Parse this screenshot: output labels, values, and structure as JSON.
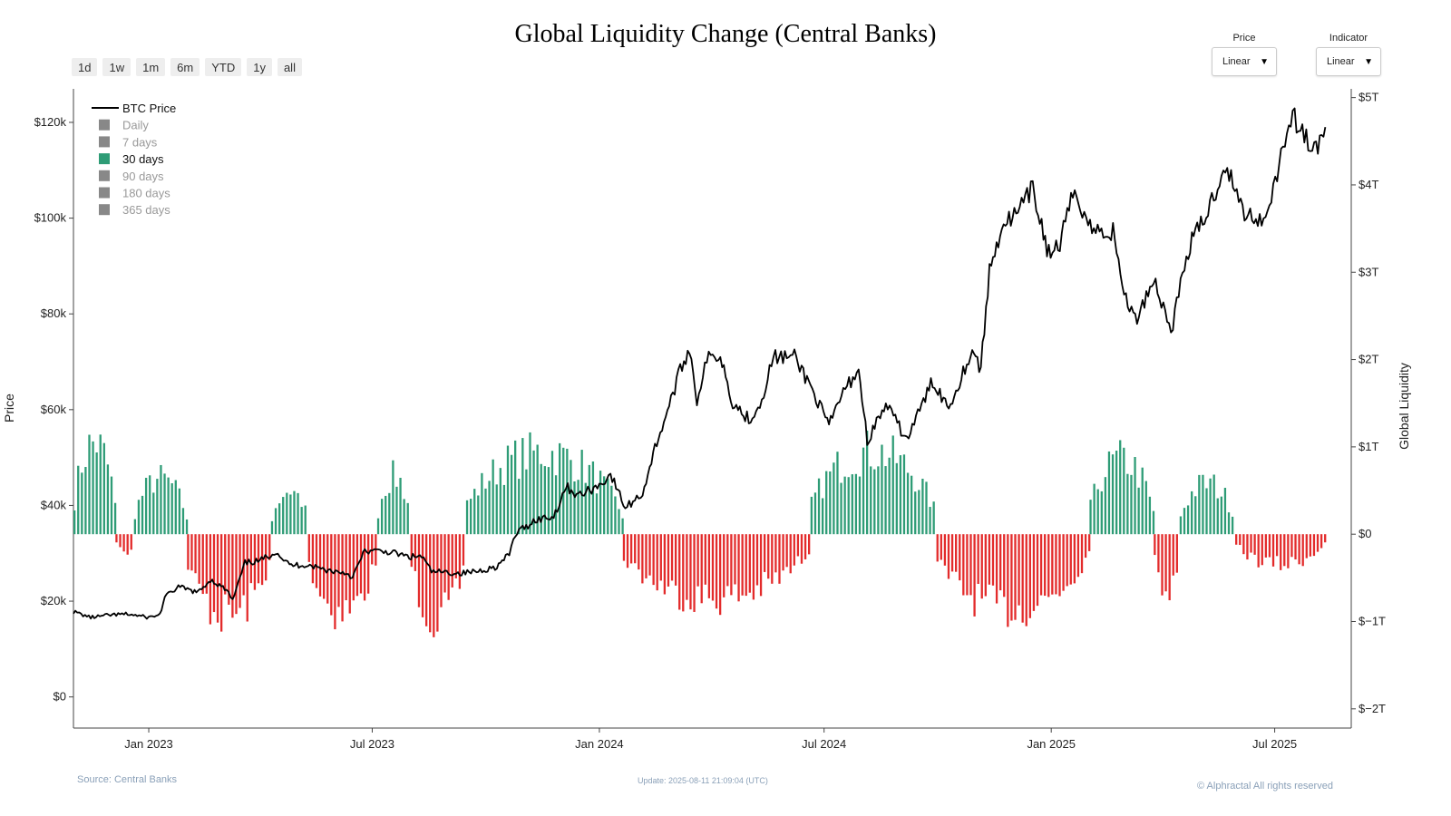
{
  "title": "Global Liquidity Change (Central Banks)",
  "range_buttons": [
    "1d",
    "1w",
    "1m",
    "6m",
    "YTD",
    "1y",
    "all"
  ],
  "dropdowns": {
    "price": {
      "label": "Price",
      "value": "Linear"
    },
    "indicator": {
      "label": "Indicator",
      "value": "Linear"
    }
  },
  "footer": {
    "source": "Source: Central Banks",
    "update": "Update: 2025-08-11 21:09:04 (UTC)",
    "copyright": "© Alphractal All rights reserved"
  },
  "colors": {
    "positive": "#2e9c76",
    "negative": "#e32b2b",
    "price_line": "#000000",
    "legend_inactive": "#888888",
    "legend_active": "#2e9c76"
  },
  "chart_data": {
    "type": "bar",
    "x_range": [
      "2022-11-01",
      "2025-09-01"
    ],
    "x_ticks": [
      {
        "date": "2023-01-01",
        "label": "Jan 2023"
      },
      {
        "date": "2023-07-01",
        "label": "Jul 2023"
      },
      {
        "date": "2024-01-01",
        "label": "Jan 2024"
      },
      {
        "date": "2024-07-01",
        "label": "Jul 2024"
      },
      {
        "date": "2025-01-01",
        "label": "Jan 2025"
      },
      {
        "date": "2025-07-01",
        "label": "Jul 2025"
      }
    ],
    "y_left": {
      "label": "Price",
      "range": [
        -6500,
        127000
      ],
      "ticks": [
        {
          "value": 0,
          "label": "$0"
        },
        {
          "value": 20000,
          "label": "$20k"
        },
        {
          "value": 40000,
          "label": "$40k"
        },
        {
          "value": 60000,
          "label": "$60k"
        },
        {
          "value": 80000,
          "label": "$80k"
        },
        {
          "value": 100000,
          "label": "$100k"
        },
        {
          "value": 120000,
          "label": "$120k"
        }
      ]
    },
    "y_right": {
      "label": "Global Liquidity",
      "range": [
        -2.22,
        5.1
      ],
      "ticks": [
        {
          "value": 5,
          "label": "$5T"
        },
        {
          "value": 4,
          "label": "$4T"
        },
        {
          "value": 3,
          "label": "$3T"
        },
        {
          "value": 2,
          "label": "$2T"
        },
        {
          "value": 1,
          "label": "$1T"
        },
        {
          "value": 0,
          "label": "$0"
        },
        {
          "value": -1,
          "label": "$−1T"
        },
        {
          "value": -2,
          "label": "$−2T"
        }
      ]
    },
    "legend": {
      "position": "top-left",
      "items": [
        {
          "name": "BTC Price",
          "kind": "line",
          "active": true
        },
        {
          "name": "Daily",
          "kind": "box",
          "active": false
        },
        {
          "name": "7 days",
          "kind": "box",
          "active": false
        },
        {
          "name": "30 days",
          "kind": "box",
          "active": true
        },
        {
          "name": "90 days",
          "kind": "box",
          "active": false
        },
        {
          "name": "180 days",
          "kind": "box",
          "active": false
        },
        {
          "name": "365 days",
          "kind": "box",
          "active": false
        }
      ]
    },
    "series": [
      {
        "name": "BTC Price",
        "type": "line",
        "axis": "left",
        "points": [
          [
            "2022-11-01",
            17800
          ],
          [
            "2022-11-15",
            16600
          ],
          [
            "2022-12-01",
            17100
          ],
          [
            "2022-12-15",
            17300
          ],
          [
            "2023-01-01",
            16600
          ],
          [
            "2023-01-10",
            17200
          ],
          [
            "2023-01-14",
            20800
          ],
          [
            "2023-01-25",
            23000
          ],
          [
            "2023-02-10",
            21800
          ],
          [
            "2023-02-20",
            24500
          ],
          [
            "2023-03-05",
            22300
          ],
          [
            "2023-03-10",
            20200
          ],
          [
            "2023-03-20",
            28000
          ],
          [
            "2023-04-01",
            28400
          ],
          [
            "2023-04-14",
            30400
          ],
          [
            "2023-04-25",
            27500
          ],
          [
            "2023-05-10",
            27600
          ],
          [
            "2023-05-25",
            26500
          ],
          [
            "2023-06-10",
            25900
          ],
          [
            "2023-06-15",
            25000
          ],
          [
            "2023-06-25",
            30500
          ],
          [
            "2023-07-15",
            30300
          ],
          [
            "2023-07-31",
            29200
          ],
          [
            "2023-08-10",
            29400
          ],
          [
            "2023-08-18",
            26200
          ],
          [
            "2023-09-10",
            25800
          ],
          [
            "2023-09-25",
            26300
          ],
          [
            "2023-10-10",
            27200
          ],
          [
            "2023-10-20",
            29800
          ],
          [
            "2023-10-25",
            34000
          ],
          [
            "2023-11-10",
            37000
          ],
          [
            "2023-11-25",
            37700
          ],
          [
            "2023-12-05",
            44000
          ],
          [
            "2023-12-15",
            42000
          ],
          [
            "2024-01-01",
            44200
          ],
          [
            "2024-01-10",
            46500
          ],
          [
            "2024-01-22",
            39500
          ],
          [
            "2024-02-05",
            42500
          ],
          [
            "2024-02-15",
            52000
          ],
          [
            "2024-02-28",
            62000
          ],
          [
            "2024-03-05",
            67000
          ],
          [
            "2024-03-14",
            73000
          ],
          [
            "2024-03-20",
            62000
          ],
          [
            "2024-03-28",
            70500
          ],
          [
            "2024-04-08",
            71500
          ],
          [
            "2024-04-18",
            61500
          ],
          [
            "2024-05-01",
            58000
          ],
          [
            "2024-05-10",
            61000
          ],
          [
            "2024-05-21",
            71000
          ],
          [
            "2024-06-07",
            71000
          ],
          [
            "2024-06-20",
            65000
          ],
          [
            "2024-07-05",
            56500
          ],
          [
            "2024-07-15",
            63000
          ],
          [
            "2024-07-29",
            68500
          ],
          [
            "2024-08-05",
            53500
          ],
          [
            "2024-08-20",
            61000
          ],
          [
            "2024-09-06",
            53800
          ],
          [
            "2024-09-27",
            66000
          ],
          [
            "2024-10-10",
            60500
          ],
          [
            "2024-10-29",
            72500
          ],
          [
            "2024-11-05",
            68500
          ],
          [
            "2024-11-12",
            89000
          ],
          [
            "2024-11-22",
            98500
          ],
          [
            "2024-12-05",
            101000
          ],
          [
            "2024-12-17",
            106000
          ],
          [
            "2024-12-30",
            92500
          ],
          [
            "2025-01-08",
            94500
          ],
          [
            "2025-01-20",
            106000
          ],
          [
            "2025-02-03",
            97500
          ],
          [
            "2025-02-20",
            97000
          ],
          [
            "2025-03-01",
            84500
          ],
          [
            "2025-03-10",
            78500
          ],
          [
            "2025-03-25",
            87500
          ],
          [
            "2025-04-08",
            76500
          ],
          [
            "2025-04-22",
            93500
          ],
          [
            "2025-05-08",
            101500
          ],
          [
            "2025-05-22",
            111500
          ],
          [
            "2025-06-05",
            101500
          ],
          [
            "2025-06-22",
            99500
          ],
          [
            "2025-07-03",
            109500
          ],
          [
            "2025-07-14",
            121500
          ],
          [
            "2025-07-25",
            117500
          ],
          [
            "2025-08-02",
            113500
          ],
          [
            "2025-08-11",
            119000
          ]
        ]
      },
      {
        "name": "30 days",
        "type": "bar",
        "axis": "right",
        "segments": [
          {
            "start": "2022-11-01",
            "end": "2022-12-05",
            "peak": 1.35
          },
          {
            "start": "2022-12-05",
            "end": "2022-12-20",
            "peak": -0.28
          },
          {
            "start": "2022-12-20",
            "end": "2023-02-01",
            "peak": 0.82
          },
          {
            "start": "2023-02-01",
            "end": "2023-04-10",
            "peak": -1.2
          },
          {
            "start": "2023-04-10",
            "end": "2023-05-10",
            "peak": 0.65
          },
          {
            "start": "2023-05-10",
            "end": "2023-07-05",
            "peak": -1.15
          },
          {
            "start": "2023-07-05",
            "end": "2023-08-01",
            "peak": 0.85
          },
          {
            "start": "2023-08-01",
            "end": "2023-09-15",
            "peak": -1.25
          },
          {
            "start": "2023-09-15",
            "end": "2024-01-20",
            "peak": 1.2
          },
          {
            "start": "2024-01-20",
            "end": "2024-06-20",
            "peak": -0.95
          },
          {
            "start": "2024-06-20",
            "end": "2024-09-30",
            "peak": 1.22
          },
          {
            "start": "2024-09-30",
            "end": "2025-02-01",
            "peak": -1.1
          },
          {
            "start": "2025-02-01",
            "end": "2025-03-25",
            "peak": 1.1
          },
          {
            "start": "2025-03-25",
            "end": "2025-04-15",
            "peak": -0.82
          },
          {
            "start": "2025-04-15",
            "end": "2025-05-30",
            "peak": 0.75
          },
          {
            "start": "2025-05-30",
            "end": "2025-08-11",
            "peak": -0.45
          }
        ]
      }
    ]
  }
}
